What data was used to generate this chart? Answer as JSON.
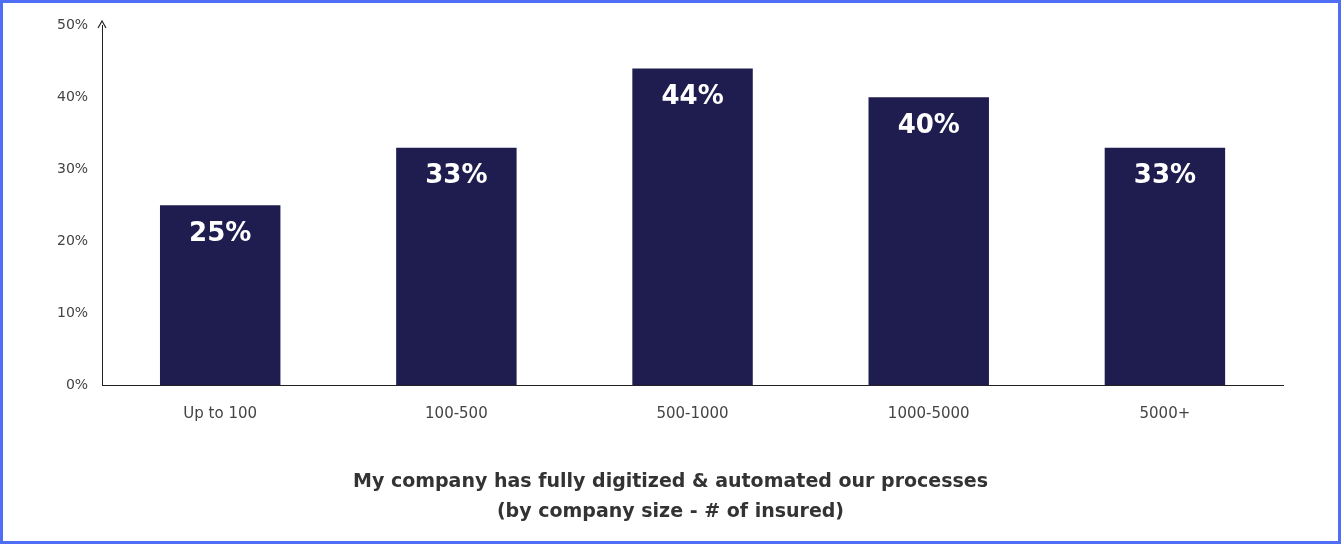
{
  "chart_data": {
    "type": "bar",
    "title": "My company has fully digitized & automated our processes",
    "subtitle": "(by company size - # of insured)",
    "categories": [
      "Up to 100",
      "100-500",
      "500-1000",
      "1000-5000",
      "5000+"
    ],
    "values": [
      25,
      33,
      44,
      40,
      33
    ],
    "color": "#1f1d4f",
    "value_labels": [
      "25%",
      "33%",
      "44%",
      "40%",
      "33%"
    ],
    "ylim": [
      0,
      50
    ],
    "yticks": [
      {
        "value": 0,
        "label": "0%"
      },
      {
        "value": 10,
        "label": "10%"
      },
      {
        "value": 20,
        "label": "20%"
      },
      {
        "value": 30,
        "label": "30%"
      },
      {
        "value": 40,
        "label": "40%"
      },
      {
        "value": 50,
        "label": "50%"
      }
    ],
    "grid": false,
    "legend": false
  }
}
